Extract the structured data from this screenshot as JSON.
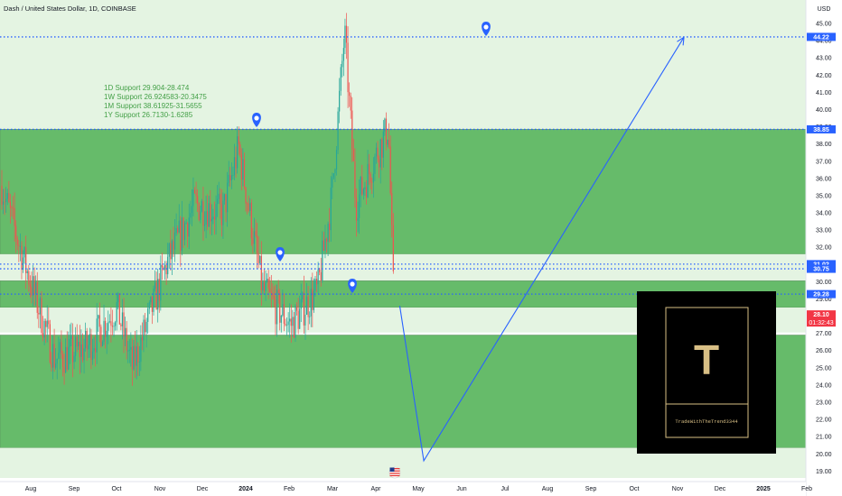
{
  "header": {
    "title": "Dash / United States Dollar, 1D, COINBASE",
    "currency": "USD"
  },
  "support_notes": [
    "1D Support 29.904-28.474",
    "1W Support 26.924583-20.3475",
    "1M Support 38.61925-31.5655",
    "1Y Support 26.7130-1.6285"
  ],
  "price_badges": {
    "level_44": "44.22",
    "level_38": "38.85",
    "level_31": "31.02",
    "level_30": "30.75",
    "level_29": "29.28",
    "current_price": "28.10",
    "countdown": "01:32:43"
  },
  "logo": {
    "letter": "T",
    "caption": "TradeWithTheTrend3344"
  },
  "colors": {
    "zone_green": "#66bb6a",
    "zone_light": "#e4f4e2",
    "level_line": "#2962ff",
    "candle_up": "#26a69a",
    "candle_down": "#ef5350",
    "current_badge": "#f23645",
    "logo_gold": "#d8bf85"
  },
  "chart_data": {
    "type": "candlestick",
    "y_axis_ticks": [
      "45.00",
      "44.00",
      "43.00",
      "42.00",
      "41.00",
      "40.00",
      "39.00",
      "38.00",
      "37.00",
      "36.00",
      "35.00",
      "34.00",
      "33.00",
      "32.00",
      "31.00",
      "30.00",
      "29.00",
      "28.00",
      "27.00",
      "26.00",
      "25.00",
      "24.00",
      "23.00",
      "22.00",
      "21.00",
      "20.00",
      "19.00"
    ],
    "x_axis_ticks": [
      "Aug",
      "Sep",
      "Oct",
      "Nov",
      "Dec",
      "2024",
      "Feb",
      "Mar",
      "Apr",
      "May",
      "Jun",
      "Jul",
      "Aug",
      "Sep",
      "Oct",
      "Nov",
      "Dec",
      "2025",
      "Feb"
    ],
    "ylim": [
      18.6,
      45.4
    ],
    "horizontal_levels": [
      44.22,
      38.85,
      31.02,
      30.75,
      29.28
    ],
    "zones": [
      {
        "kind": "green",
        "top": 38.85,
        "bottom": 31.6
      },
      {
        "kind": "light",
        "top": 31.6,
        "bottom": 30.05
      },
      {
        "kind": "green",
        "top": 30.05,
        "bottom": 28.5
      },
      {
        "kind": "light",
        "top": 28.5,
        "bottom": 27.05
      },
      {
        "kind": "green",
        "top": 26.9,
        "bottom": 20.35
      },
      {
        "kind": "light",
        "top": 20.35,
        "bottom": 18.6
      }
    ],
    "projection_path": [
      {
        "date": "2024-04-18",
        "price": 28.6
      },
      {
        "date": "2024-05-05",
        "price": 19.6
      },
      {
        "date": "2024-11-05",
        "price": 44.2
      }
    ],
    "price_path": [
      {
        "date": "2023-07-10",
        "price": 36.0
      },
      {
        "date": "2023-07-28",
        "price": 31.0
      },
      {
        "date": "2023-08-18",
        "price": 25.5
      },
      {
        "date": "2023-09-10",
        "price": 26.2
      },
      {
        "date": "2023-10-01",
        "price": 28.5
      },
      {
        "date": "2023-10-12",
        "price": 25.0
      },
      {
        "date": "2023-11-05",
        "price": 31.0
      },
      {
        "date": "2023-11-25",
        "price": 34.5
      },
      {
        "date": "2023-12-15",
        "price": 34.0
      },
      {
        "date": "2023-12-26",
        "price": 37.8
      },
      {
        "date": "2024-01-12",
        "price": 29.5
      },
      {
        "date": "2024-02-01",
        "price": 27.5
      },
      {
        "date": "2024-02-20",
        "price": 29.5
      },
      {
        "date": "2024-03-01",
        "price": 35.0
      },
      {
        "date": "2024-03-10",
        "price": 44.5
      },
      {
        "date": "2024-03-18",
        "price": 34.5
      },
      {
        "date": "2024-03-28",
        "price": 36.5
      },
      {
        "date": "2024-04-10",
        "price": 39.0
      },
      {
        "date": "2024-04-14",
        "price": 28.1
      }
    ]
  }
}
